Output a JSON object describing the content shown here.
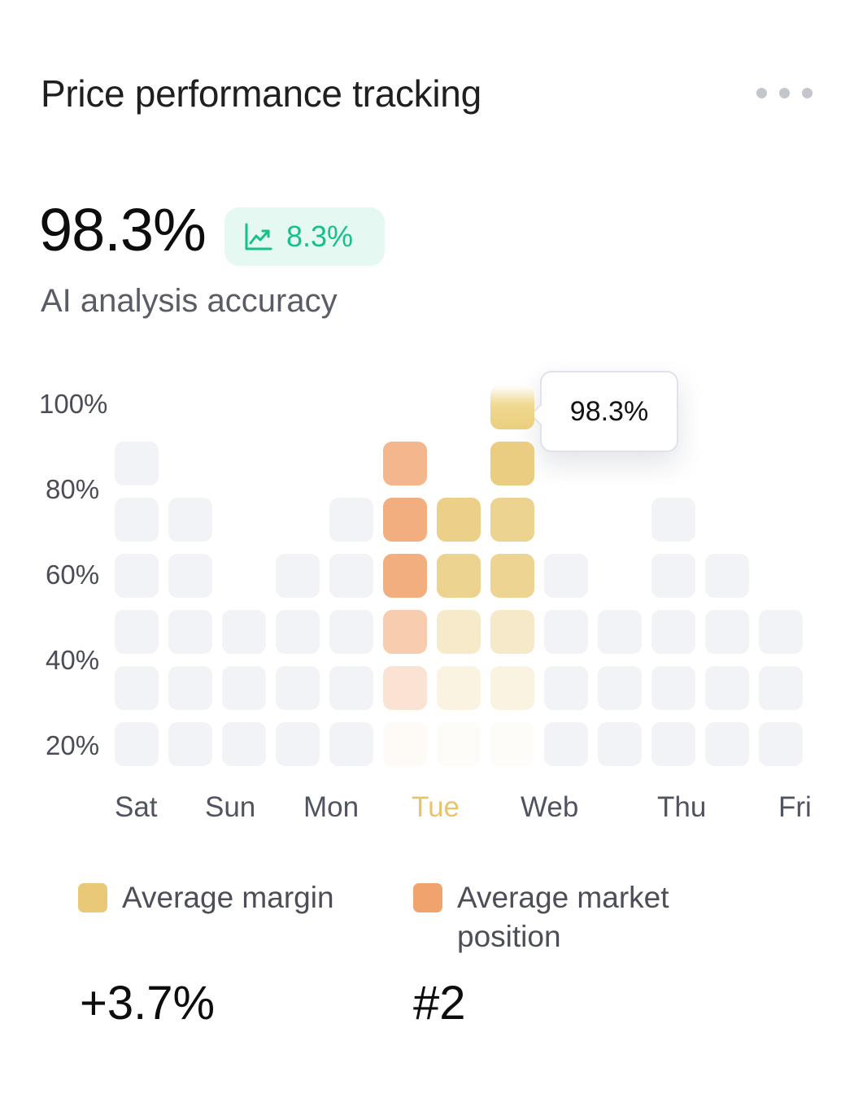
{
  "header": {
    "title": "Price performance tracking",
    "more_icon": "more-horizontal-icon"
  },
  "kpi": {
    "value": "98.3%",
    "change": "8.3%",
    "change_icon": "trend-up-icon",
    "subtitle": "AI analysis accuracy"
  },
  "chart_data": {
    "type": "heatmap",
    "categories": [
      "Sat",
      "Sun",
      "Mon",
      "Tue",
      "Web",
      "Thu",
      "Fri"
    ],
    "highlighted_category": "Tue",
    "y_ticks": [
      "100%",
      "80%",
      "60%",
      "40%",
      "20%"
    ],
    "ylim": [
      0,
      100
    ],
    "tooltip": "98.3%",
    "colors": {
      "empty": "#f2f3f7",
      "margin": "#e9c977",
      "market_position": "#f1a36d",
      "highlight_label": "#e8c46e"
    },
    "columns": [
      {
        "levels": [
          "empty",
          "empty",
          "empty",
          "empty",
          "empty",
          "empty"
        ]
      },
      {
        "levels": [
          "empty",
          "empty",
          "empty",
          "empty",
          "empty"
        ]
      },
      {
        "levels": [
          "empty",
          "empty",
          "empty"
        ]
      },
      {
        "levels": [
          "empty",
          "empty",
          "empty",
          "empty"
        ]
      },
      {
        "levels": [
          "empty",
          "empty",
          "empty",
          "empty",
          "empty"
        ]
      },
      {
        "series": "market_position",
        "levels": [
          0.06,
          0.3,
          0.55,
          0.88,
          0.88,
          0.78
        ]
      },
      {
        "series": "margin",
        "levels": [
          0.05,
          0.22,
          0.38,
          0.82,
          0.88
        ]
      },
      {
        "series": "margin",
        "levels": [
          0.05,
          0.22,
          0.4,
          0.8,
          0.82,
          0.92,
          "top"
        ]
      },
      {
        "levels": [
          "empty",
          "empty",
          "empty",
          "empty"
        ]
      },
      {
        "levels": [
          "empty",
          "empty",
          "empty"
        ]
      },
      {
        "levels": [
          "empty",
          "empty",
          "empty",
          "empty",
          "empty"
        ]
      },
      {
        "levels": [
          "empty",
          "empty",
          "empty",
          "empty"
        ]
      },
      {
        "levels": [
          "empty",
          "empty",
          "empty"
        ]
      }
    ],
    "legend": [
      {
        "label": "Average margin",
        "value": "+3.7%"
      },
      {
        "label": "Average market position",
        "value": "#2"
      }
    ]
  }
}
